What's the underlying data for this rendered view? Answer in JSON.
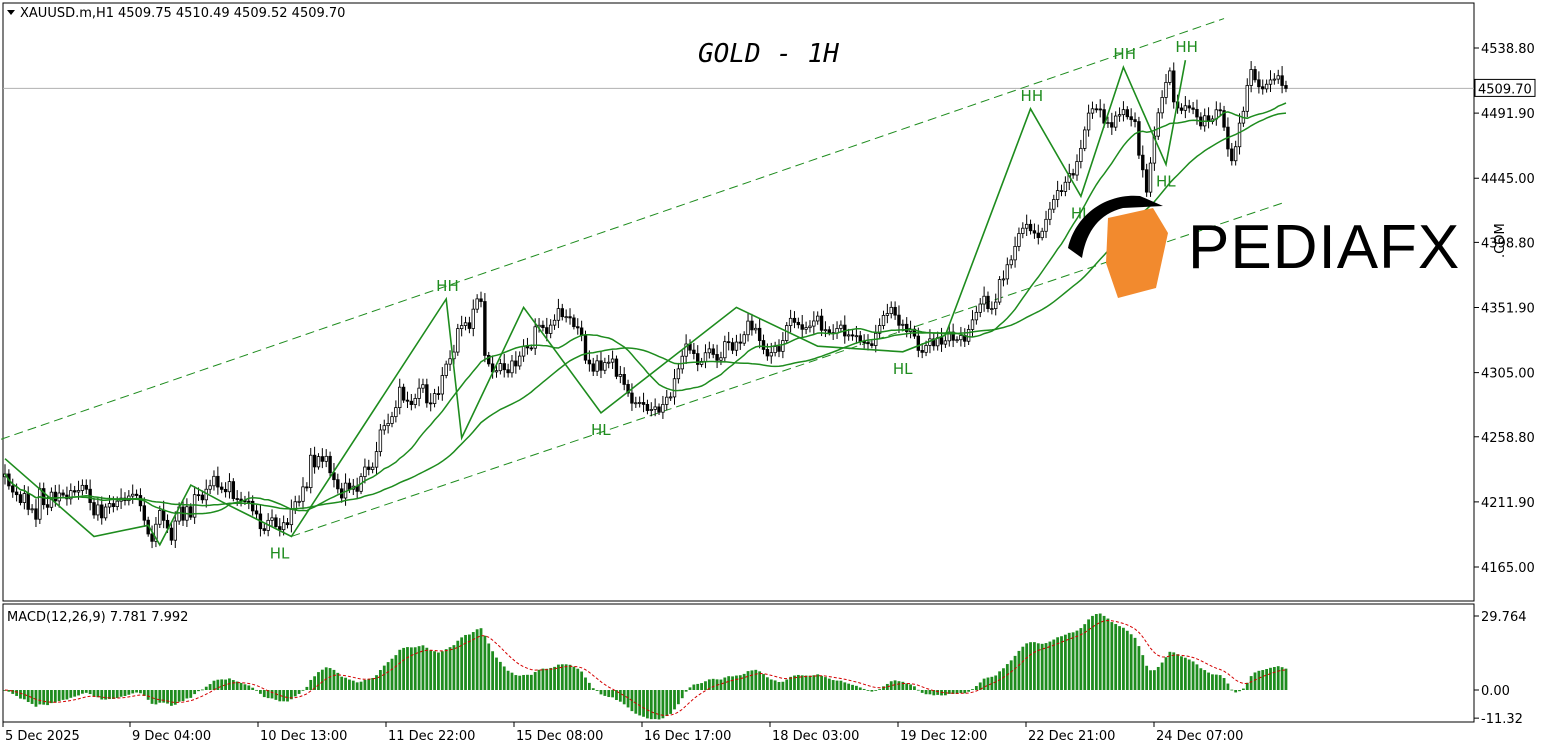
{
  "header": {
    "symbol": "XAUUSD.m,H1",
    "ohlc": "4509.75 4510.49 4509.52 4509.70"
  },
  "title": "GOLD - 1H",
  "current_price_label": "4509.70",
  "macd_label": "MACD(12,26,9) 7.781 7.992",
  "logo": {
    "brand": "PEDIAFX",
    "suffix": ".COM"
  },
  "colors": {
    "candle": "#000000",
    "ma": "#1e8c1e",
    "zigzag": "#1e8c1e",
    "channel": "#1e8c1e",
    "macd_hist": "#1e8c1e",
    "macd_signal": "#d40000",
    "logo_orange": "#f28a2e"
  },
  "chart_data": {
    "type": "candlestick",
    "price_axis": {
      "ticks": [
        "4538.80",
        "4491.90",
        "4445.00",
        "4398.80",
        "4351.90",
        "4305.00",
        "4258.80",
        "4211.90",
        "4165.00"
      ],
      "ylim": [
        4140,
        4568
      ]
    },
    "time_axis": {
      "ticks": [
        "5 Dec 2025",
        "9 Dec 04:00",
        "10 Dec 13:00",
        "11 Dec 22:00",
        "15 Dec 08:00",
        "16 Dec 17:00",
        "18 Dec 03:00",
        "19 Dec 12:00",
        "22 Dec 21:00",
        "24 Dec 07:00"
      ]
    },
    "closes": [
      4232.0,
      4223.4,
      4219.0,
      4217.1,
      4211.4,
      4217.9,
      4206.5,
      4206.9,
      4199.4,
      4221.5,
      4209.9,
      4208.0,
      4218.9,
      4212.6,
      4218.3,
      4216.8,
      4214.1,
      4220.0,
      4219.0,
      4220.1,
      4223.8,
      4221.0,
      4211.4,
      4202.5,
      4209.7,
      4200.4,
      4208.2,
      4210.7,
      4208.5,
      4212.4,
      4214.6,
      4212.8,
      4216.1,
      4217.4,
      4216.5,
      4209.1,
      4198.7,
      4188.8,
      4183.5,
      4195.8,
      4205.7,
      4198.6,
      4193.0,
      4184.3,
      4198.1,
      4208.2,
      4198.7,
      4208.4,
      4200.9,
      4217.1,
      4216.8,
      4213.4,
      4221.0,
      4223.5,
      4230.3,
      4222.6,
      4220.9,
      4219.2,
      4226.5,
      4214.3,
      4213.9,
      4212.8,
      4212.4,
      4212.3,
      4205.4,
      4203.2,
      4192.6,
      4191.3,
      4198.6,
      4200.4,
      4194.1,
      4191.9,
      4196.9,
      4195.5,
      4206.6,
      4212.0,
      4212.3,
      4222.7,
      4222.2,
      4245.5,
      4237.1,
      4244.5,
      4241.1,
      4244.7,
      4232.9,
      4227.9,
      4221.3,
      4214.7,
      4225.4,
      4221.0,
      4223.2,
      4219.5,
      4230.1,
      4237.0,
      4235.2,
      4236.9,
      4248.1,
      4263.7,
      4266.8,
      4268.4,
      4273.3,
      4279.8,
      4294.5,
      4285.2,
      4284.4,
      4282.0,
      4286.4,
      4293.8,
      4296.3,
      4283.2,
      4282.7,
      4289.9,
      4289.6,
      4302.9,
      4311.1,
      4315.0,
      4319.8,
      4336.7,
      4338.9,
      4340.9,
      4336.8,
      4350.7,
      4358.1,
      4356.2,
      4317.4,
      4311.3,
      4305.5,
      4306.4,
      4311.5,
      4307.1,
      4304.9,
      4313.4,
      4309.8,
      4316.9,
      4323.9,
      4322.8,
      4322.6,
      4338.0,
      4339.1,
      4337.4,
      4333.2,
      4339.2,
      4342.7,
      4351.1,
      4345.3,
      4345.3,
      4344.4,
      4338.1,
      4337.2,
      4331.8,
      4314.0,
      4311.3,
      4306.0,
      4313.5,
      4306.7,
      4312.3,
      4312.5,
      4314.8,
      4302.3,
      4303.7,
      4296.5,
      4290.3,
      4283.0,
      4283.3,
      4283.5,
      4282.1,
      4277.7,
      4278.5,
      4280.3,
      4276.5,
      4282.1,
      4287.3,
      4287.5,
      4300.6,
      4307.7,
      4316.8,
      4325.6,
      4321.2,
      4318.7,
      4310.9,
      4313.1,
      4319.3,
      4322.1,
      4318.1,
      4313.9,
      4315.7,
      4327.3,
      4326.6,
      4321.1,
      4327.0,
      4326.2,
      4332.3,
      4342.1,
      4335.8,
      4336.9,
      4328.1,
      4321.7,
      4317.0,
      4319.4,
      4323.8,
      4320.3,
      4328.1,
      4338.9,
      4344.1,
      4341.2,
      4339.5,
      4336.2,
      4337.4,
      4338.5,
      4342.2,
      4345.7,
      4335.5,
      4335.9,
      4333.8,
      4333.4,
      4336.8,
      4339.2,
      4331.4,
      4332.2,
      4331.4,
      4331.6,
      4327.5,
      4326.6,
      4325.8,
      4324.5,
      4333.3,
      4338.9,
      4346.2,
      4347.5,
      4352.0,
      4346.4,
      4339.1,
      4339.8,
      4334.6,
      4336.3,
      4331.3,
      4321.0,
      4319.6,
      4324.6,
      4329.3,
      4324.3,
      4330.2,
      4325.5,
      4327.9,
      4334.2,
      4328.3,
      4328.7,
      4331.8,
      4327.6,
      4336.1,
      4343.0,
      4348.4,
      4354.4,
      4360.0,
      4351.1,
      4351.1,
      4355.8,
      4372.0,
      4372.5,
      4382.7,
      4386.2,
      4395.9,
      4405.2,
      4409.0,
      4411.8,
      4407.2,
      4405.5,
      4402.2,
      4406.8,
      4415.4,
      4422.7,
      4429.7,
      4436.1,
      4435.5,
      4442.1,
      4448.4,
      4447.3,
      4457.0,
      4466.5,
      4479.8,
      4491.9,
      4495.0,
      4494.9,
      4494.4,
      4484.7,
      4485.1,
      4481.8,
      4489.8,
      4490.8,
      4494.4,
      4489.3,
      4487.2,
      4485.8,
      4461.6,
      4451.1,
      4435.0,
      4455.9,
      4475.3,
      4492.1,
      4503.2,
      4514.0,
      4522.3,
      4500.0,
      4495.6,
      4493.9,
      4497.2,
      4495.6,
      4494.6,
      4489.1,
      4482.7,
      4490.0,
      4485.8,
      4487.7,
      4494.3,
      4493.7,
      4481.8,
      4466.1,
      4457.6,
      4467.7,
      4484.7,
      4493.2,
      4511.8,
      4523.3,
      4515.9,
      4510.9,
      4509.4,
      4512.7,
      4515.8,
      4516.4,
      4518.8,
      4511.8,
      4509.7
    ],
    "series": [
      {
        "name": "MA 20",
        "type": "line"
      },
      {
        "name": "MA 50",
        "type": "line"
      }
    ],
    "swing_labels": [
      {
        "text": "HH",
        "index": 114,
        "value": 4358.0
      },
      {
        "text": "HL",
        "index": 71,
        "value": 4187.0
      },
      {
        "text": "HL",
        "index": 154,
        "value": 4276.0
      },
      {
        "text": "HL",
        "index": 232,
        "value": 4320.0
      },
      {
        "text": "HH",
        "index": 265,
        "value": 4495.0
      },
      {
        "text": "HL",
        "index": 278,
        "value": 4432.0
      },
      {
        "text": "HH",
        "index": 289,
        "value": 4525.0
      },
      {
        "text": "HL",
        "index": 300,
        "value": 4455.0
      },
      {
        "text": "HH",
        "index": 305,
        "value": 4530.0
      }
    ],
    "channel": {
      "upper": [
        {
          "index": -1,
          "value": 4257
        },
        {
          "index": 315,
          "value": 4560
        }
      ],
      "lower": [
        {
          "index": 74,
          "value": 4187
        },
        {
          "index": 331,
          "value": 4428
        }
      ]
    },
    "macd": {
      "params": "MACD(12,26,9)",
      "main": 7.781,
      "signal": 7.992,
      "axis_ticks": [
        "29.764",
        "0.00",
        "-11.32"
      ],
      "ylim": [
        -11.32,
        29.764
      ]
    }
  }
}
